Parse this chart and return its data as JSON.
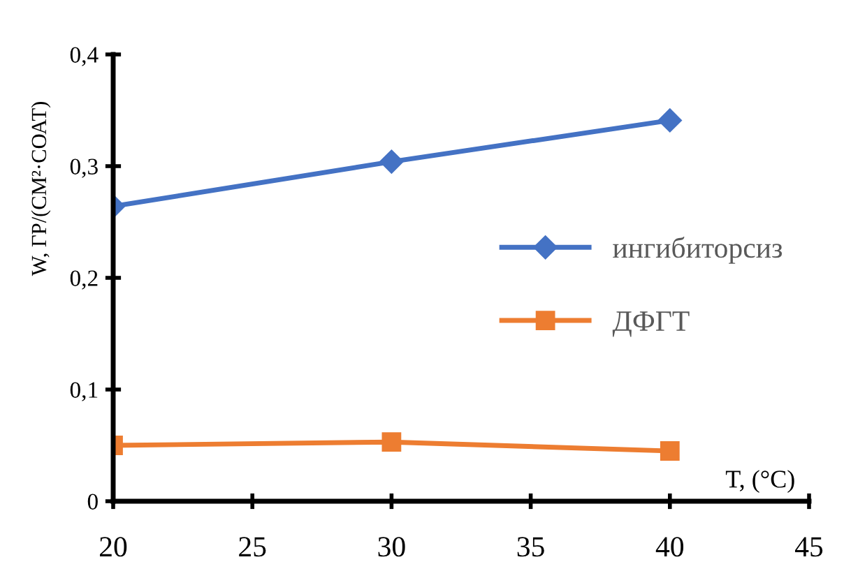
{
  "chart_data": {
    "type": "line",
    "xlabel": "T, (°C)",
    "ylabel": "W, ГР/(СМ²·СОАТ)",
    "x": [
      20,
      30,
      40
    ],
    "series": [
      {
        "name": "ингибиторсиз",
        "color": "#4472c4",
        "marker": "diamond",
        "values": [
          0.264,
          0.304,
          0.341
        ]
      },
      {
        "name": "ДФГТ",
        "color": "#ed7d31",
        "marker": "square",
        "values": [
          0.05,
          0.053,
          0.045
        ]
      }
    ],
    "xlim": [
      20,
      45
    ],
    "xticks": [
      20,
      25,
      30,
      35,
      40,
      45
    ],
    "ylim": [
      0,
      0.4
    ],
    "yticks": [
      0,
      {
        "value": 0.1,
        "label": "0,1"
      },
      {
        "value": 0.2,
        "label": "0,2"
      },
      {
        "value": 0.3,
        "label": "0,3"
      },
      {
        "value": 0.4,
        "label": "0,4"
      }
    ],
    "grid": false,
    "legend": "right",
    "line_style": "solid"
  }
}
